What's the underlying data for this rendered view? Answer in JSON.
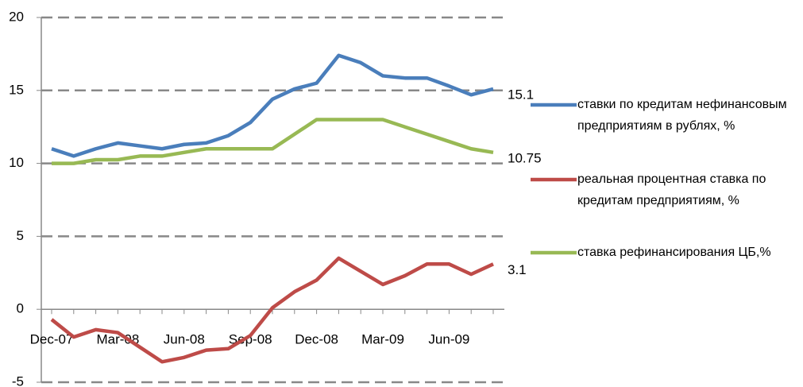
{
  "chart_data": {
    "type": "line",
    "categories": [
      "Dec-07",
      null,
      null,
      "Mar-08",
      null,
      null,
      "Jun-08",
      null,
      null,
      "Sep-08",
      null,
      null,
      "Dec-08",
      null,
      null,
      "Mar-09",
      null,
      null,
      "Jun-09",
      null,
      null
    ],
    "series": [
      {
        "name": "ставки по кредитам нефинансовым предприятиям в рублях, %",
        "color": "#4a7ebb",
        "label_last": true,
        "values": [
          11.0,
          10.5,
          11.0,
          11.4,
          11.2,
          11.0,
          11.3,
          11.4,
          11.9,
          12.8,
          14.4,
          15.1,
          15.5,
          17.4,
          16.9,
          16.0,
          15.85,
          15.85,
          15.3,
          14.7,
          15.1
        ]
      },
      {
        "name": "реальная процентная ставка по кредитам предприятиям, %",
        "color": "#be4b48",
        "label_last": true,
        "values": [
          -0.7,
          -1.9,
          -1.4,
          -1.6,
          -2.6,
          -3.6,
          -3.3,
          -2.8,
          -2.7,
          -1.8,
          0.1,
          1.2,
          2.0,
          3.5,
          2.6,
          1.7,
          2.3,
          3.1,
          3.1,
          2.4,
          3.1
        ]
      },
      {
        "name": "ставка рефинансирования ЦБ,%",
        "color": "#98b954",
        "label_last": true,
        "values": [
          10.0,
          10.0,
          10.25,
          10.25,
          10.5,
          10.5,
          10.75,
          11.0,
          11.0,
          11.0,
          11.0,
          12.0,
          13.0,
          13.0,
          13.0,
          13.0,
          12.5,
          12.0,
          11.5,
          11.0,
          10.75
        ]
      }
    ],
    "ylim": [
      -5,
      20
    ],
    "yticks": [
      -5,
      0,
      5,
      10,
      15,
      20
    ],
    "grid": true
  }
}
